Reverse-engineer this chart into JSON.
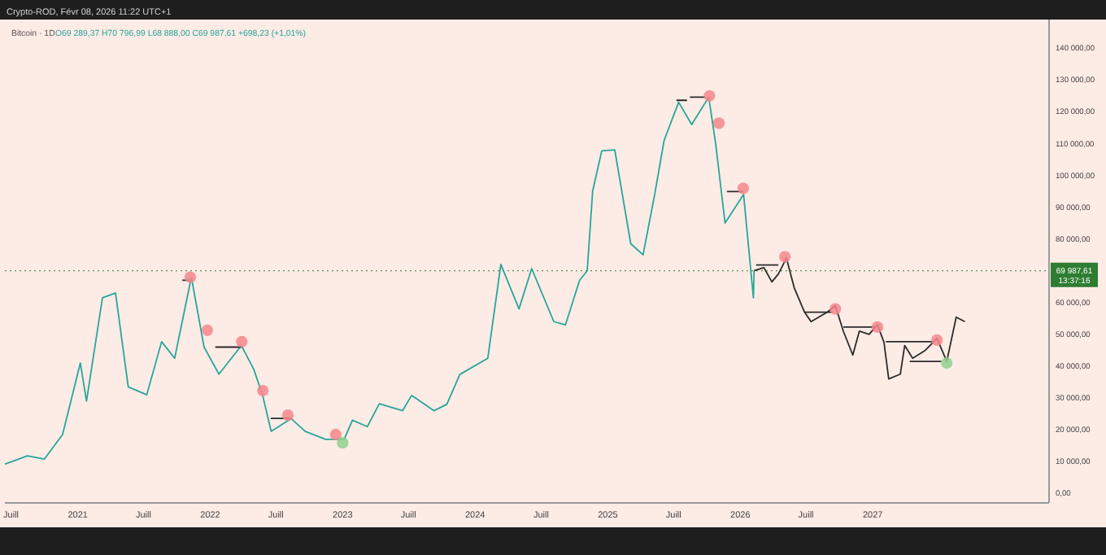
{
  "chart_data": {
    "type": "line",
    "title": "Bitcoin · 1D",
    "subtitle": "O69 289,37 H70 796,99 L68 888,00 C69 987,61 +698,23 (+1,01%)",
    "annotations": [
      "Crypto-ROD, Févr 08, 2026 11:22 UTC+1",
      "13:37:16"
    ],
    "xlim": [
      "2020-06-14",
      "2028-05-01"
    ],
    "xticks": [
      {
        "value": "2020-07",
        "label": "Juill"
      },
      {
        "value": "2021",
        "label": "2021"
      },
      {
        "value": "2021-07",
        "label": "Juill"
      },
      {
        "value": "2022",
        "label": "2022"
      },
      {
        "value": "2022-07",
        "label": "Juill"
      },
      {
        "value": "2023",
        "label": "2023"
      },
      {
        "value": "2023-07",
        "label": "Juill"
      },
      {
        "value": "2024",
        "label": "2024"
      },
      {
        "value": "2024-07",
        "label": "Juill"
      },
      {
        "value": "2025",
        "label": "2025"
      },
      {
        "value": "2025-07",
        "label": "Juill"
      },
      {
        "value": "2026",
        "label": "2026"
      },
      {
        "value": "2026-07",
        "label": "Juill"
      },
      {
        "value": "2027",
        "label": "2027"
      }
    ],
    "ylim": [
      -3000,
      149000
    ],
    "yticks": [
      {
        "value": 0,
        "label": "0,00"
      },
      {
        "value": 10000,
        "label": "10 000,00"
      },
      {
        "value": 20000,
        "label": "20 000,00"
      },
      {
        "value": 30000,
        "label": "30 000,00"
      },
      {
        "value": 40000,
        "label": "40 000,00"
      },
      {
        "value": 50000,
        "label": "50 000,00"
      },
      {
        "value": 60000,
        "label": "60 000,00"
      },
      {
        "value": 80000,
        "label": "80 000,00"
      },
      {
        "value": 90000,
        "label": "90 000,00"
      },
      {
        "value": 100000,
        "label": "100 000,00"
      },
      {
        "value": 110000,
        "label": "110 000,00"
      },
      {
        "value": 120000,
        "label": "120 000,00"
      },
      {
        "value": 130000,
        "label": "130 000,00"
      },
      {
        "value": 140000,
        "label": "140 000,00"
      }
    ],
    "ref_lines": [
      {
        "axis": "y",
        "value": 69987.61,
        "label": "69 987,61",
        "color": "#2e7d32",
        "line_style": "dotted"
      }
    ],
    "series": [
      {
        "color": "#26a69a",
        "x": [
          "2020-06-14",
          "2020-08-15",
          "2020-10-01",
          "2020-11-20",
          "2021-01-08",
          "2021-01-25",
          "2021-03-10",
          "2021-04-15",
          "2021-05-20",
          "2021-07-10",
          "2021-08-20",
          "2021-09-25",
          "2021-11-10",
          "2021-12-15",
          "2022-01-25",
          "2022-03-28",
          "2022-05-01",
          "2022-05-25",
          "2022-06-18",
          "2022-08-12",
          "2022-09-20",
          "2022-11-15",
          "2023-01-05",
          "2023-01-28",
          "2023-03-10",
          "2023-04-12",
          "2023-06-15",
          "2023-07-10",
          "2023-09-10",
          "2023-10-15",
          "2023-11-20",
          "2024-02-05",
          "2024-03-12",
          "2024-05-01",
          "2024-06-05",
          "2024-08-05",
          "2024-09-06",
          "2024-10-15",
          "2024-11-05",
          "2024-11-20",
          "2024-12-15",
          "2025-01-20",
          "2025-03-05",
          "2025-04-08",
          "2025-05-10",
          "2025-06-05",
          "2025-07-15",
          "2025-08-20",
          "2025-10-06",
          "2025-10-25",
          "2025-11-20",
          "2026-01-10",
          "2026-02-06",
          "2026-02-08"
        ],
        "values": [
          9200,
          11800,
          10800,
          18500,
          41000,
          29000,
          61500,
          63000,
          33500,
          31000,
          47700,
          42500,
          68000,
          46000,
          37500,
          46500,
          39000,
          31000,
          19500,
          23500,
          19500,
          17000,
          17000,
          23000,
          21000,
          28200,
          26000,
          30800,
          26000,
          28000,
          37400,
          42500,
          72000,
          58000,
          70700,
          54000,
          53000,
          67000,
          70000,
          95000,
          107700,
          108000,
          78500,
          75000,
          94000,
          111000,
          123000,
          116000,
          124600,
          110000,
          85000,
          94000,
          61500,
          70000
        ]
      },
      {
        "color": "#2b2b2b",
        "x": [
          "2026-02-08",
          "2026-03-07",
          "2026-03-29",
          "2026-04-16",
          "2026-05-08",
          "2026-05-30",
          "2026-06-27",
          "2026-07-15",
          "2026-08-29",
          "2026-09-20",
          "2026-10-12",
          "2026-11-07",
          "2026-11-25",
          "2026-12-22",
          "2027-01-14",
          "2027-02-01",
          "2027-02-14",
          "2027-03-18",
          "2027-03-30",
          "2027-04-21",
          "2027-05-26",
          "2027-06-27",
          "2027-07-24",
          "2027-08-19",
          "2027-09-12"
        ],
        "values": [
          70000,
          71000,
          66500,
          69000,
          74000,
          64500,
          57000,
          54000,
          57000,
          59000,
          51000,
          43500,
          51000,
          50000,
          53000,
          47500,
          36000,
          37500,
          46500,
          42500,
          45000,
          48700,
          41500,
          55400,
          54000
        ]
      },
      {
        "color": "#2b2b2b",
        "x": [
          "2021-10-16",
          "2021-11-07",
          null,
          "2022-01-15",
          "2022-03-29",
          null,
          "2022-06-17",
          "2022-08-10",
          null,
          "2025-07-09",
          "2025-08-07",
          null,
          "2025-08-15",
          "2025-09-28",
          null,
          "2025-11-25",
          "2026-01-09",
          null,
          "2026-02-14",
          "2026-04-16",
          null,
          "2026-06-27",
          "2026-09-12",
          null,
          "2026-10-12",
          "2027-01-08",
          null,
          "2027-02-06",
          "2027-06-18",
          null,
          "2027-04-13",
          "2027-07-09"
        ],
        "values": [
          67000,
          67000,
          null,
          46000,
          46000,
          null,
          23600,
          23600,
          null,
          123600,
          123600,
          null,
          124600,
          124600,
          null,
          94900,
          94900,
          null,
          71800,
          71800,
          null,
          57000,
          57000,
          null,
          52300,
          52300,
          null,
          47700,
          47700,
          null,
          41500,
          41500
        ]
      },
      {
        "type": "scatter",
        "marker": "circle",
        "color": "#f4878b",
        "x": [
          "2021-11-07",
          "2021-12-24",
          "2022-03-29",
          "2022-05-26",
          "2022-08-03",
          "2022-12-13",
          "2025-10-08",
          "2025-11-03",
          "2026-01-09",
          "2026-05-04",
          "2026-09-20",
          "2027-01-14",
          "2027-06-27"
        ],
        "values": [
          68000,
          51300,
          47700,
          32300,
          24600,
          18500,
          125000,
          116400,
          95900,
          74400,
          58000,
          52300,
          48200
        ]
      },
      {
        "type": "scatter",
        "marker": "circle",
        "color": "#8fd18f",
        "x": [
          "2023-01-01",
          "2027-07-24"
        ],
        "values": [
          15900,
          41000
        ]
      }
    ]
  }
}
